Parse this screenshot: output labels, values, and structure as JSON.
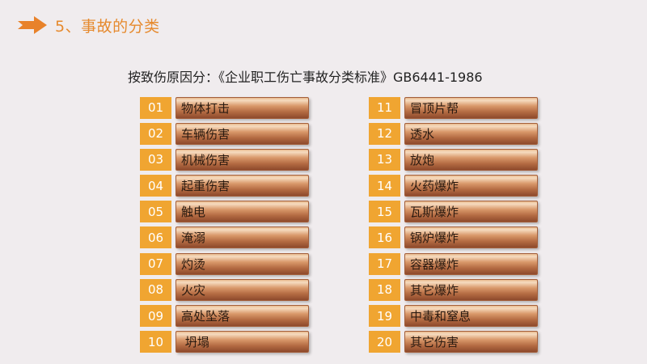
{
  "header": {
    "title": "5、事故的分类"
  },
  "subtitle": "按致伤原因分：《企业职工伤亡事故分类标准》GB6441-1986",
  "left_column": [
    {
      "num": "01",
      "label": "物体打击"
    },
    {
      "num": "02",
      "label": "车辆伤害"
    },
    {
      "num": "03",
      "label": "机械伤害"
    },
    {
      "num": "04",
      "label": "起重伤害"
    },
    {
      "num": "05",
      "label": "触电"
    },
    {
      "num": "06",
      "label": "淹溺"
    },
    {
      "num": "07",
      "label": "灼烫"
    },
    {
      "num": "08",
      "label": "火灾"
    },
    {
      "num": "09",
      "label": "高处坠落"
    },
    {
      "num": "10",
      "label": " 坍塌"
    }
  ],
  "right_column": [
    {
      "num": "11",
      "label": "冒顶片帮"
    },
    {
      "num": "12",
      "label": "透水"
    },
    {
      "num": "13",
      "label": "放炮"
    },
    {
      "num": "14",
      "label": "火药爆炸"
    },
    {
      "num": "15",
      "label": "瓦斯爆炸"
    },
    {
      "num": "16",
      "label": "锅炉爆炸"
    },
    {
      "num": "17",
      "label": "容器爆炸"
    },
    {
      "num": "18",
      "label": "其它爆炸"
    },
    {
      "num": "19",
      "label": "中毒和窒息"
    },
    {
      "num": "20",
      "label": "其它伤害"
    }
  ],
  "colors": {
    "accent": "#f0a531",
    "title": "#e68a2e",
    "background": "#f0ecee"
  },
  "icons": {
    "header_icon": "arrow-right-icon"
  }
}
